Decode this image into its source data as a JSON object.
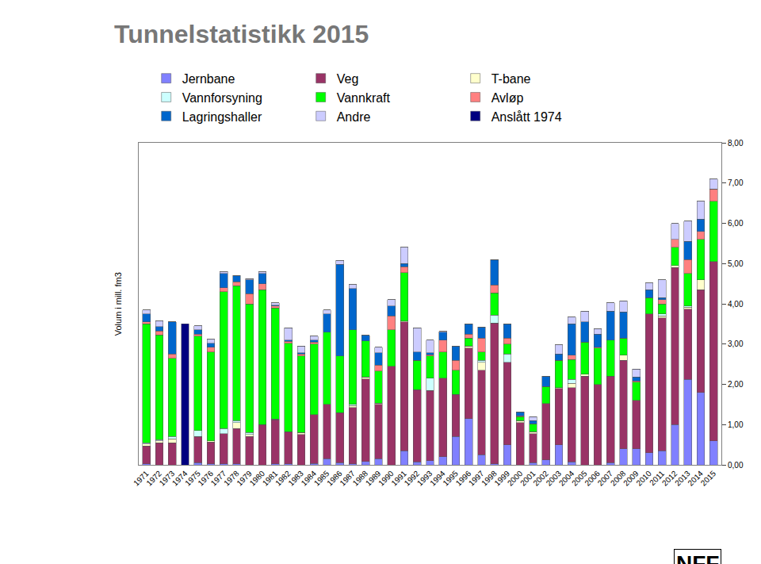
{
  "chart_data": {
    "type": "bar",
    "title": "Tunnelstatistikk 2015",
    "y_label": "Volum i mill. fm3",
    "annotations": [
      "NFF"
    ],
    "stacked": true,
    "grid": false,
    "legend": "top",
    "categories": [
      "1971",
      "1972",
      "1973",
      "1974",
      "1975",
      "1976",
      "1977",
      "1978",
      "1979",
      "1980",
      "1981",
      "1982",
      "1983",
      "1984",
      "1985",
      "1986",
      "1987",
      "1988",
      "1989",
      "1990",
      "1991",
      "1992",
      "1993",
      "1994",
      "1995",
      "1996",
      "1997",
      "1998",
      "1999",
      "2000",
      "2001",
      "2002",
      "2003",
      "2004",
      "2005",
      "2006",
      "2007",
      "2008",
      "2009",
      "2010",
      "2011",
      "2012",
      "2013",
      "2014",
      "2015"
    ],
    "ylim": [
      0,
      8
    ],
    "yticks": [
      {
        "value": 0,
        "label": "0,00"
      },
      {
        "value": 1,
        "label": "1,00"
      },
      {
        "value": 2,
        "label": "2,00"
      },
      {
        "value": 3,
        "label": "3,00"
      },
      {
        "value": 4,
        "label": "4,00"
      },
      {
        "value": 5,
        "label": "5,00"
      },
      {
        "value": 6,
        "label": "6,00"
      },
      {
        "value": 7,
        "label": "7,00"
      },
      {
        "value": 8,
        "label": "8,00"
      }
    ],
    "series": [
      {
        "name": "Jernbane",
        "color": "#8080ff",
        "values": [
          0.02,
          0,
          0,
          0,
          0.05,
          0.02,
          0.02,
          0.02,
          0,
          0,
          0.02,
          0.02,
          0,
          0.03,
          0.15,
          0.05,
          0.02,
          0.08,
          0.15,
          0,
          0.35,
          0.07,
          0.1,
          0.2,
          0.7,
          1.15,
          0.25,
          0.02,
          0.5,
          0,
          0.05,
          0.12,
          0.5,
          0.07,
          0,
          0,
          0.05,
          0.4,
          0.4,
          0.3,
          0.35,
          1.0,
          2.12,
          1.8,
          0.6
        ]
      },
      {
        "name": "Veg",
        "color": "#993366",
        "values": [
          0.45,
          0.55,
          0.55,
          0,
          0.65,
          0.55,
          0.75,
          0.88,
          0.7,
          1.0,
          1.1,
          0.8,
          0.75,
          1.22,
          1.35,
          1.25,
          1.4,
          2.05,
          1.35,
          2.45,
          3.2,
          1.8,
          1.75,
          1.95,
          1.05,
          1.75,
          2.1,
          3.5,
          2.05,
          1.05,
          0.72,
          1.4,
          1.4,
          1.85,
          2.2,
          2.0,
          2.15,
          2.2,
          1.2,
          3.45,
          3.3,
          3.9,
          1.75,
          2.55,
          4.45
        ]
      },
      {
        "name": "T-bane",
        "color": "#ffffcc",
        "values": [
          0.05,
          0.05,
          0.1,
          0,
          0,
          0.03,
          0,
          0.15,
          0.05,
          0,
          0.02,
          0,
          0.05,
          0,
          0,
          0,
          0.05,
          0.05,
          0.03,
          0,
          0.02,
          0,
          0,
          0,
          0,
          0.05,
          0.2,
          0,
          0,
          0.05,
          0.05,
          0,
          0.02,
          0.1,
          0.05,
          0,
          0,
          0.12,
          0,
          0,
          0.05,
          0.05,
          0.05,
          0.25,
          0
        ]
      },
      {
        "name": "Vannforsyning",
        "color": "#ccffff",
        "values": [
          0.03,
          0.03,
          0.05,
          0,
          0.15,
          0,
          0.13,
          0.05,
          0.05,
          0,
          0,
          0,
          0,
          0,
          0,
          0,
          0.03,
          0,
          0,
          0,
          0,
          0,
          0.3,
          0,
          0,
          0,
          0.05,
          0.2,
          0.2,
          0,
          0,
          0,
          0,
          0.1,
          0,
          0,
          0,
          0,
          0,
          0,
          0.05,
          0,
          0.03,
          0,
          0
        ]
      },
      {
        "name": "Vannkraft",
        "color": "#00ff00",
        "values": [
          2.95,
          2.6,
          1.95,
          0,
          2.35,
          2.2,
          3.4,
          3.35,
          3.2,
          3.35,
          2.76,
          2.2,
          1.9,
          1.75,
          1.8,
          1.4,
          1.85,
          0.9,
          0.8,
          0.9,
          1.2,
          0.73,
          0.55,
          0.65,
          0.6,
          0.2,
          0.2,
          0.55,
          0.25,
          0.1,
          0.2,
          0.43,
          0.68,
          0.5,
          0.8,
          0.9,
          0.9,
          0.43,
          0.45,
          0.4,
          0.25,
          0.45,
          0.8,
          1.0,
          1.5
        ]
      },
      {
        "name": "Avløp",
        "color": "#ff8080",
        "values": [
          0.05,
          0.1,
          0.1,
          0,
          0.05,
          0.12,
          0.1,
          0.1,
          0.25,
          0.15,
          0.05,
          0.05,
          0.05,
          0.05,
          0,
          0,
          0,
          0,
          0.15,
          0.35,
          0.15,
          0,
          0.03,
          0.3,
          0.25,
          0.1,
          0.35,
          0.2,
          0.15,
          0.02,
          0,
          0,
          0,
          0.1,
          0,
          0.02,
          0,
          0,
          0.03,
          0,
          0.1,
          0.2,
          0.35,
          0.2,
          0.3
        ]
      },
      {
        "name": "Lagringshaller",
        "color": "#0066cc",
        "values": [
          0.2,
          0.1,
          0.8,
          0,
          0.1,
          0.1,
          0.35,
          0.15,
          0.35,
          0.25,
          0.02,
          0.03,
          0.03,
          0.05,
          0.45,
          2.28,
          1.03,
          0.14,
          0.3,
          0.25,
          0.08,
          0.2,
          0.05,
          0.2,
          0.35,
          0.25,
          0.27,
          0.63,
          0.35,
          0.1,
          0.08,
          0.25,
          0.15,
          0.78,
          0.5,
          0.33,
          0.72,
          0.65,
          0.1,
          0.2,
          0.05,
          0,
          0.45,
          0.3,
          0
        ]
      },
      {
        "name": "Andre",
        "color": "#ccccff",
        "values": [
          0.1,
          0.15,
          0,
          0,
          0.1,
          0.1,
          0.05,
          0,
          0.03,
          0.05,
          0.05,
          0.3,
          0.17,
          0.1,
          0.1,
          0.1,
          0.1,
          0,
          0.14,
          0.15,
          0.4,
          0.6,
          0.32,
          0.02,
          0,
          0,
          0,
          0,
          0,
          0,
          0.1,
          0,
          0.23,
          0.17,
          0.27,
          0.13,
          0.2,
          0.27,
          0.2,
          0.17,
          0.45,
          0.4,
          0.5,
          0.45,
          0.25
        ]
      },
      {
        "name": "Anslått 1974",
        "color": "#000080",
        "values": [
          0,
          0,
          0,
          3.5,
          0,
          0,
          0,
          0,
          0,
          0,
          0,
          0,
          0,
          0,
          0,
          0,
          0,
          0,
          0,
          0,
          0,
          0,
          0,
          0,
          0,
          0,
          0,
          0,
          0,
          0,
          0,
          0,
          0,
          0,
          0,
          0,
          0,
          0,
          0,
          0,
          0,
          0,
          0,
          0,
          0
        ]
      }
    ]
  }
}
